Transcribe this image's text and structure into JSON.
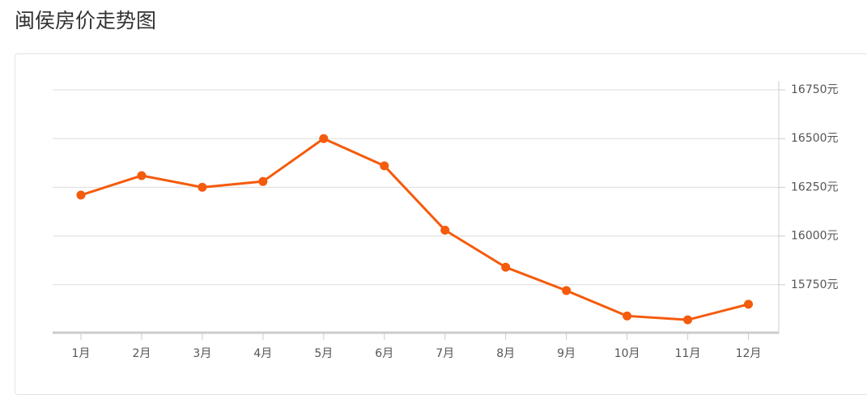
{
  "chart_data": {
    "type": "line",
    "title": "闽侯房价走势图",
    "categories": [
      "1月",
      "2月",
      "3月",
      "4月",
      "5月",
      "6月",
      "7月",
      "8月",
      "9月",
      "10月",
      "11月",
      "12月"
    ],
    "series": [
      {
        "color": "#f45b0c",
        "values": [
          16210,
          16310,
          16250,
          16280,
          16500,
          16360,
          16030,
          15840,
          15720,
          15590,
          15570,
          15650
        ]
      }
    ],
    "ylim": [
      15500,
      16750
    ],
    "yticks": [
      {
        "value": 15750,
        "label": "15750元"
      },
      {
        "value": 16000,
        "label": "16000元"
      },
      {
        "value": 16250,
        "label": "16250元"
      },
      {
        "value": 16500,
        "label": "16500元"
      },
      {
        "value": 16750,
        "label": "16750元"
      }
    ],
    "grid": true
  }
}
